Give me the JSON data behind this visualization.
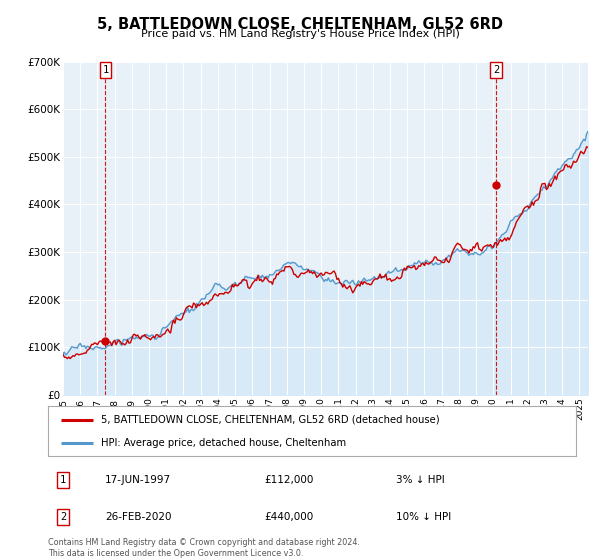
{
  "title": "5, BATTLEDOWN CLOSE, CHELTENHAM, GL52 6RD",
  "subtitle": "Price paid vs. HM Land Registry's House Price Index (HPI)",
  "ylabel_ticks": [
    "£0",
    "£100K",
    "£200K",
    "£300K",
    "£400K",
    "£500K",
    "£600K",
    "£700K"
  ],
  "ylim": [
    0,
    700000
  ],
  "xlim_start": 1995.0,
  "xlim_end": 2025.5,
  "price_paid_color": "#cc0000",
  "hpi_color": "#5599cc",
  "hpi_fill_color": "#d8eaf7",
  "bg_color": "#e8f0f8",
  "annotation1": {
    "label": "1",
    "date_num": 1997.46,
    "value": 112000,
    "text": "17-JUN-1997",
    "price": "£112,000",
    "note": "3% ↓ HPI"
  },
  "annotation2": {
    "label": "2",
    "date_num": 2020.15,
    "value": 440000,
    "text": "26-FEB-2020",
    "price": "£440,000",
    "note": "10% ↓ HPI"
  },
  "legend_line1": "5, BATTLEDOWN CLOSE, CHELTENHAM, GL52 6RD (detached house)",
  "legend_line2": "HPI: Average price, detached house, Cheltenham",
  "footer": "Contains HM Land Registry data © Crown copyright and database right 2024.\nThis data is licensed under the Open Government Licence v3.0.",
  "xtick_years": [
    1995,
    1996,
    1997,
    1998,
    1999,
    2000,
    2001,
    2002,
    2003,
    2004,
    2005,
    2006,
    2007,
    2008,
    2009,
    2010,
    2011,
    2012,
    2013,
    2014,
    2015,
    2016,
    2017,
    2018,
    2019,
    2020,
    2021,
    2022,
    2023,
    2024,
    2025
  ]
}
